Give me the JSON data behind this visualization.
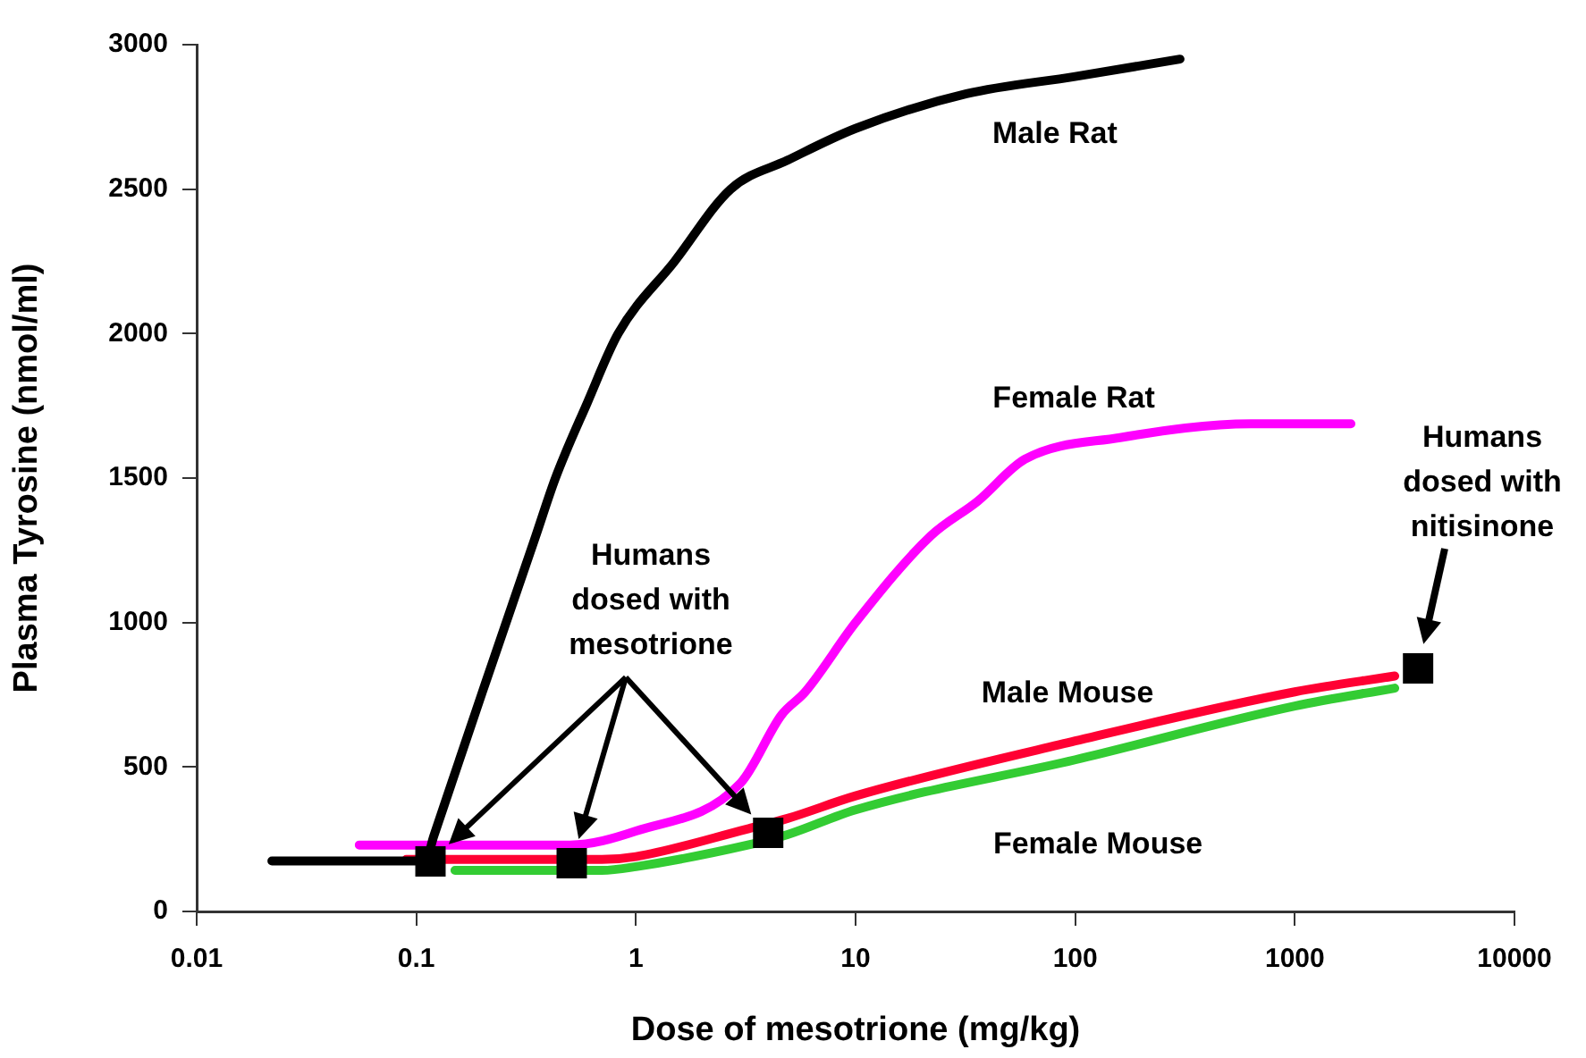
{
  "chart_data": {
    "type": "line",
    "xlabel": "Dose of mesotrione (mg/kg)",
    "ylabel": "Plasma Tyrosine (nmol/ml)",
    "log": "x",
    "xlim": [
      0.01,
      10000
    ],
    "xticks": [
      0.01,
      0.1,
      1,
      10,
      100,
      1000,
      10000
    ],
    "ylim": [
      0,
      3000
    ],
    "yticks": [
      0,
      500,
      1000,
      1500,
      2000,
      2500,
      3000
    ],
    "grid": false,
    "legend": false,
    "line_style": "solid",
    "marker": "none",
    "series": [
      {
        "name": "Male Rat",
        "color": "#000000",
        "x": [
          0.022,
          0.11,
          0.12,
          0.2,
          0.35,
          0.43,
          0.6,
          0.83,
          1.5,
          2.7,
          4.9,
          10,
          32,
          100,
          300
        ],
        "values": [
          175,
          175,
          260,
          760,
          1300,
          1500,
          1760,
          2000,
          2250,
          2500,
          2600,
          2710,
          2830,
          2890,
          2950
        ]
      },
      {
        "name": "Female Rat",
        "color": "#ff00ff",
        "x": [
          0.055,
          0.5,
          1,
          3,
          4.6,
          5.9,
          10,
          22,
          36,
          59,
          160,
          630,
          1800
        ],
        "values": [
          230,
          230,
          278,
          445,
          680,
          760,
          1000,
          1300,
          1420,
          1565,
          1640,
          1688,
          1688
        ]
      },
      {
        "name": "Male Mouse",
        "color": "#ff0033",
        "x": [
          0.09,
          0.7,
          1,
          3.2,
          4.9,
          10,
          100,
          1000,
          2850
        ],
        "values": [
          180,
          180,
          190,
          285,
          322,
          400,
          590,
          760,
          815
        ]
      },
      {
        "name": "Female Mouse",
        "color": "#33cc33",
        "x": [
          0.15,
          0.7,
          1,
          3.2,
          4.9,
          10,
          100,
          1000,
          2850
        ],
        "values": [
          142,
          142,
          155,
          229,
          266,
          352,
          525,
          711,
          773
        ]
      },
      {
        "type": "scatter",
        "marker": "square",
        "color": "#000000",
        "x": [
          0.116,
          0.51,
          4.0,
          3640
        ],
        "values": [
          173,
          167,
          272,
          841
        ]
      }
    ],
    "annotations": [
      "Humans dosed with mesotrione",
      "Humans dosed with nitisinone"
    ]
  }
}
